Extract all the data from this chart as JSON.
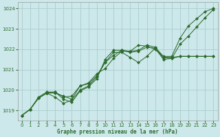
{
  "title": "Graphe pression niveau de la mer (hPa)",
  "bg_color": "#cce8ea",
  "grid_color": "#aacccc",
  "line_color": "#2d6a2d",
  "xlim": [
    -0.5,
    23.5
  ],
  "ylim": [
    1018.5,
    1024.3
  ],
  "xticks": [
    0,
    1,
    2,
    3,
    4,
    5,
    6,
    7,
    8,
    9,
    10,
    11,
    12,
    13,
    14,
    15,
    16,
    17,
    18,
    19,
    20,
    21,
    22,
    23
  ],
  "yticks": [
    1019,
    1020,
    1021,
    1022,
    1023,
    1024
  ],
  "lines": [
    {
      "x": [
        0,
        1,
        2,
        3,
        4,
        5,
        6,
        7,
        8,
        9,
        10,
        11,
        12,
        13,
        14,
        15,
        16,
        17,
        18,
        19,
        20,
        21,
        22,
        23
      ],
      "y": [
        1018.75,
        1019.05,
        1019.6,
        1019.85,
        1019.9,
        1019.65,
        1019.7,
        1020.2,
        1020.35,
        1020.8,
        1021.05,
        1021.55,
        1021.9,
        1021.9,
        1021.95,
        1022.2,
        1022.1,
        1021.65,
        1021.65,
        1022.55,
        1023.15,
        1023.5,
        1023.85,
        1024.0
      ],
      "marker": "D",
      "markersize": 2.2
    },
    {
      "x": [
        0,
        1,
        2,
        3,
        4,
        5,
        6,
        7,
        8,
        9,
        10,
        11,
        12,
        13,
        14,
        15,
        16,
        17,
        18,
        19,
        20,
        21,
        22,
        23
      ],
      "y": [
        1018.75,
        1019.05,
        1019.6,
        1019.85,
        1019.65,
        1019.35,
        1019.5,
        1020.0,
        1020.2,
        1020.65,
        1021.35,
        1021.85,
        1021.85,
        1021.6,
        1021.35,
        1021.65,
        1022.05,
        1021.5,
        1021.55,
        1022.25,
        1022.65,
        1023.1,
        1023.55,
        1023.95
      ],
      "marker": "D",
      "markersize": 2.2
    },
    {
      "x": [
        0,
        1,
        2,
        3,
        4,
        5,
        6,
        7,
        8,
        9,
        10,
        11,
        12,
        13,
        14,
        15,
        16,
        17,
        18,
        19,
        20,
        21,
        22,
        23
      ],
      "y": [
        1018.75,
        1019.05,
        1019.65,
        1019.9,
        1019.9,
        1019.55,
        1019.4,
        1019.95,
        1020.15,
        1020.55,
        1021.5,
        1021.95,
        1021.95,
        1021.9,
        1022.2,
        1022.15,
        1022.0,
        1021.6,
        1021.55,
        1021.65,
        1021.65,
        1021.65,
        1021.65,
        1021.65
      ],
      "marker": "D",
      "markersize": 2.2
    },
    {
      "x": [
        0,
        1,
        2,
        3,
        4,
        5,
        6,
        7,
        8,
        9,
        10,
        11,
        12,
        13,
        14,
        15,
        16,
        17,
        18,
        19,
        20,
        21,
        22,
        23
      ],
      "y": [
        1018.75,
        1019.05,
        1019.6,
        1019.85,
        1019.85,
        1019.7,
        1019.55,
        1020.2,
        1020.3,
        1020.7,
        1021.35,
        1021.7,
        1021.95,
        1021.85,
        1021.9,
        1022.1,
        1022.05,
        1021.6,
        1021.6,
        1021.65,
        1021.65,
        1021.65,
        1021.65,
        1021.65
      ],
      "marker": "D",
      "markersize": 2.2
    }
  ]
}
